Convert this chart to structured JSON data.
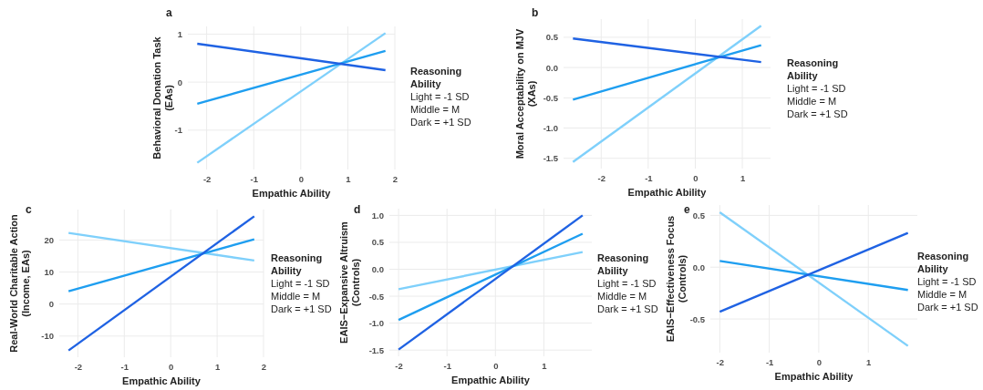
{
  "chart_data": [
    {
      "type": "line",
      "title": "a",
      "xlabel": "Empathic Ability",
      "ylabel": "Behavioral Donation Task (EAs)",
      "legend_title": "Reasoning Ability",
      "annotations": [
        "Light = -1 SD",
        "Middle = M",
        "Dark = +1 SD"
      ],
      "x": [
        -2.2,
        1.8
      ],
      "xlim": [
        -2.4,
        2.0
      ],
      "ylim": [
        -1.82,
        1.16
      ],
      "xticks": [
        -2,
        -1,
        0,
        1,
        2
      ],
      "yticks": [
        -1,
        0,
        1
      ],
      "grid": true,
      "series": [
        {
          "color": "#7fd0fb",
          "values": [
            -1.68,
            1.02
          ]
        },
        {
          "color": "#1e9ef0",
          "values": [
            -0.45,
            0.65
          ]
        },
        {
          "color": "#1f62e3",
          "values": [
            0.8,
            0.25
          ]
        }
      ]
    },
    {
      "type": "line",
      "title": "b",
      "xlabel": "Empathic Ability",
      "ylabel": "Moral Acceptability on MJV (XAs)",
      "legend_title": "Reasoning Ability",
      "annotations": [
        "Light = -1 SD",
        "Middle = M",
        "Dark = +1 SD"
      ],
      "x": [
        -2.6,
        1.4
      ],
      "xlim": [
        -2.8,
        1.6
      ],
      "ylim": [
        -1.67,
        0.8
      ],
      "xticks": [
        -2,
        -1,
        0,
        1
      ],
      "yticks": [
        -1.5,
        {
          "value": -1,
          "label": "-1.0"
        },
        -0.5,
        {
          "value": 0,
          "label": "0.0"
        },
        0.5
      ],
      "grid": true,
      "series": [
        {
          "color": "#7fd0fb",
          "values": [
            -1.56,
            0.69
          ]
        },
        {
          "color": "#1e9ef0",
          "values": [
            -0.53,
            0.37
          ]
        },
        {
          "color": "#1f62e3",
          "values": [
            0.48,
            0.09
          ]
        }
      ]
    },
    {
      "type": "line",
      "title": "c",
      "xlabel": "Empathic Ability",
      "ylabel": "Real-World Charitable Action (Income, EAs)",
      "legend_title": "Reasoning Ability",
      "annotations": [
        "Light = -1 SD",
        "Middle = M",
        "Dark = +1 SD"
      ],
      "x": [
        -2.2,
        1.8
      ],
      "xlim": [
        -2.4,
        2.0
      ],
      "ylim": [
        -16.6,
        29.5
      ],
      "xticks": [
        -2,
        -1,
        0,
        1,
        2
      ],
      "yticks": [
        -10,
        0,
        10,
        20
      ],
      "grid": true,
      "series": [
        {
          "color": "#7fd0fb",
          "values": [
            22.2,
            13.6
          ]
        },
        {
          "color": "#1e9ef0",
          "values": [
            4.0,
            20.2
          ]
        },
        {
          "color": "#1f62e3",
          "values": [
            -14.5,
            27.4
          ]
        }
      ]
    },
    {
      "type": "line",
      "title": "d",
      "xlabel": "Empathic Ability",
      "ylabel": "EAIS−Expansive Altruism (Controls)",
      "legend_title": "Reasoning Ability",
      "annotations": [
        "Light = -1 SD",
        "Middle = M",
        "Dark = +1 SD"
      ],
      "x": [
        -2.0,
        1.8
      ],
      "xlim": [
        -2.19,
        1.99
      ],
      "ylim": [
        -1.615,
        1.125
      ],
      "xticks": [
        -2,
        -1,
        0,
        1
      ],
      "yticks": [
        -1.5,
        {
          "value": -1,
          "label": "-1.0"
        },
        -0.5,
        {
          "value": 0,
          "label": "0.0"
        },
        0.5,
        {
          "value": 1,
          "label": "1.0"
        }
      ],
      "grid": true,
      "series": [
        {
          "color": "#7fd0fb",
          "values": [
            -0.37,
            0.32
          ]
        },
        {
          "color": "#1e9ef0",
          "values": [
            -0.94,
            0.66
          ]
        },
        {
          "color": "#1f62e3",
          "values": [
            -1.49,
            1.0
          ]
        }
      ]
    },
    {
      "type": "line",
      "title": "e",
      "xlabel": "Empathic Ability",
      "ylabel": "EAIS−Effectiveness Focus (Controls)",
      "legend_title": "Reasoning Ability",
      "annotations": [
        "Light = -1 SD",
        "Middle = M",
        "Dark = +1 SD"
      ],
      "x": [
        -2.0,
        1.8
      ],
      "xlim": [
        -2.19,
        1.99
      ],
      "ylim": [
        -0.825,
        0.6
      ],
      "xticks": [
        -2,
        -1,
        0,
        1
      ],
      "yticks": [
        -0.5,
        {
          "value": 0,
          "label": "0.0"
        },
        0.5
      ],
      "grid": true,
      "series": [
        {
          "color": "#7fd0fb",
          "values": [
            0.53,
            -0.76
          ]
        },
        {
          "color": "#1e9ef0",
          "values": [
            0.06,
            -0.22
          ]
        },
        {
          "color": "#1f62e3",
          "values": [
            -0.43,
            0.33
          ]
        }
      ]
    }
  ]
}
